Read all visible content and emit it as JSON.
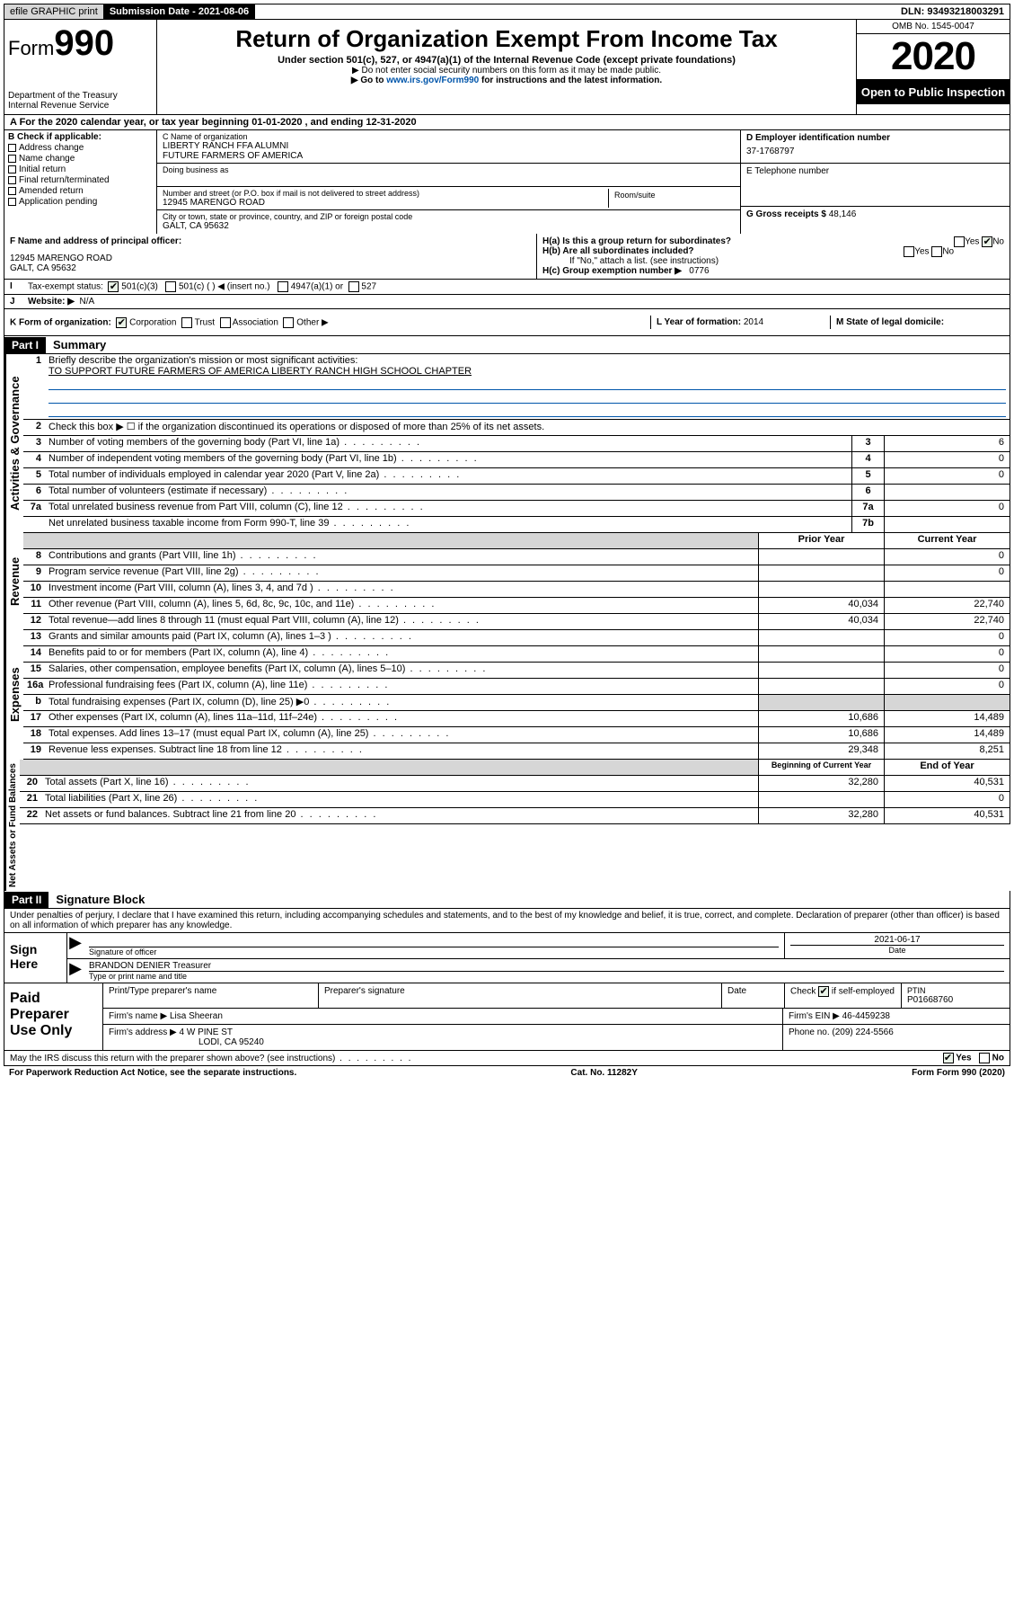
{
  "top": {
    "efile": "efile GRAPHIC print",
    "subdate_label": "Submission Date - 2021-08-06",
    "dln": "DLN: 93493218003291"
  },
  "header": {
    "form_word": "Form",
    "form_num": "990",
    "dept1": "Department of the Treasury",
    "dept2": "Internal Revenue Service",
    "title": "Return of Organization Exempt From Income Tax",
    "sub1": "Under section 501(c), 527, or 4947(a)(1) of the Internal Revenue Code (except private foundations)",
    "sub2": "▶ Do not enter social security numbers on this form as it may be made public.",
    "sub3_pre": "▶ Go to ",
    "sub3_link": "www.irs.gov/Form990",
    "sub3_post": " for instructions and the latest information.",
    "omb": "OMB No. 1545-0047",
    "year": "2020",
    "open": "Open to Public Inspection"
  },
  "a_row": "A For the 2020 calendar year, or tax year beginning 01-01-2020     , and ending 12-31-2020",
  "b": {
    "label": "B Check if applicable:",
    "opts": [
      "Address change",
      "Name change",
      "Initial return",
      "Final return/terminated",
      "Amended return",
      "Application pending"
    ]
  },
  "c": {
    "name_lbl": "C Name of organization",
    "name1": "LIBERTY RANCH FFA ALUMNI",
    "name2": "FUTURE FARMERS OF AMERICA",
    "dba_lbl": "Doing business as",
    "addr_lbl": "Number and street (or P.O. box if mail is not delivered to street address)",
    "room_lbl": "Room/suite",
    "addr": "12945 MARENGO ROAD",
    "city_lbl": "City or town, state or province, country, and ZIP or foreign postal code",
    "city": "GALT, CA  95632"
  },
  "d": {
    "lbl": "D Employer identification number",
    "val": "37-1768797"
  },
  "e": {
    "lbl": "E Telephone number"
  },
  "g": {
    "lbl": "G Gross receipts $",
    "val": "48,146"
  },
  "f": {
    "lbl": "F  Name and address of principal officer:",
    "addr1": "12945 MARENGO ROAD",
    "addr2": "GALT, CA  95632"
  },
  "h": {
    "a_lbl": "H(a)  Is this a group return for subordinates?",
    "b_lbl": "H(b)  Are all subordinates included?",
    "note": "If \"No,\" attach a list. (see instructions)",
    "c_lbl": "H(c)  Group exemption number ▶",
    "c_val": "0776"
  },
  "i": {
    "lbl": "Tax-exempt status:",
    "opt1": "501(c)(3)",
    "opt2": "501(c) (  ) ◀ (insert no.)",
    "opt3": "4947(a)(1) or",
    "opt4": "527"
  },
  "j": {
    "lbl": "Website: ▶",
    "val": "N/A"
  },
  "k": {
    "lbl": "K Form of organization:",
    "opts": [
      "Corporation",
      "Trust",
      "Association",
      "Other ▶"
    ]
  },
  "l": {
    "lbl": "L Year of formation:",
    "val": "2014"
  },
  "m": {
    "lbl": "M State of legal domicile:"
  },
  "part1": {
    "header": "Part I",
    "title": "Summary",
    "q1": "Briefly describe the organization's mission or most significant activities:",
    "q1_ans": "TO SUPPORT FUTURE FARMERS OF AMERICA LIBERTY RANCH HIGH SCHOOL CHAPTER",
    "q2": "Check this box ▶ ☐  if the organization discontinued its operations or disposed of more than 25% of its net assets.",
    "rows_gov": [
      {
        "n": "3",
        "t": "Number of voting members of the governing body (Part VI, line 1a)",
        "box": "3",
        "v": "6"
      },
      {
        "n": "4",
        "t": "Number of independent voting members of the governing body (Part VI, line 1b)",
        "box": "4",
        "v": "0"
      },
      {
        "n": "5",
        "t": "Total number of individuals employed in calendar year 2020 (Part V, line 2a)",
        "box": "5",
        "v": "0"
      },
      {
        "n": "6",
        "t": "Total number of volunteers (estimate if necessary)",
        "box": "6",
        "v": ""
      },
      {
        "n": "7a",
        "t": "Total unrelated business revenue from Part VIII, column (C), line 12",
        "box": "7a",
        "v": "0"
      },
      {
        "n": "",
        "t": "Net unrelated business taxable income from Form 990-T, line 39",
        "box": "7b",
        "v": ""
      }
    ],
    "col_prior": "Prior Year",
    "col_current": "Current Year",
    "rev": [
      {
        "n": "8",
        "t": "Contributions and grants (Part VIII, line 1h)",
        "p": "",
        "c": "0"
      },
      {
        "n": "9",
        "t": "Program service revenue (Part VIII, line 2g)",
        "p": "",
        "c": "0"
      },
      {
        "n": "10",
        "t": "Investment income (Part VIII, column (A), lines 3, 4, and 7d )",
        "p": "",
        "c": ""
      },
      {
        "n": "11",
        "t": "Other revenue (Part VIII, column (A), lines 5, 6d, 8c, 9c, 10c, and 11e)",
        "p": "40,034",
        "c": "22,740"
      },
      {
        "n": "12",
        "t": "Total revenue—add lines 8 through 11 (must equal Part VIII, column (A), line 12)",
        "p": "40,034",
        "c": "22,740"
      }
    ],
    "exp": [
      {
        "n": "13",
        "t": "Grants and similar amounts paid (Part IX, column (A), lines 1–3 )",
        "p": "",
        "c": "0"
      },
      {
        "n": "14",
        "t": "Benefits paid to or for members (Part IX, column (A), line 4)",
        "p": "",
        "c": "0"
      },
      {
        "n": "15",
        "t": "Salaries, other compensation, employee benefits (Part IX, column (A), lines 5–10)",
        "p": "",
        "c": "0"
      },
      {
        "n": "16a",
        "t": "Professional fundraising fees (Part IX, column (A), line 11e)",
        "p": "",
        "c": "0"
      },
      {
        "n": "b",
        "t": "Total fundraising expenses (Part IX, column (D), line 25) ▶0",
        "p": "SHADE",
        "c": "SHADE"
      },
      {
        "n": "17",
        "t": "Other expenses (Part IX, column (A), lines 11a–11d, 11f–24e)",
        "p": "10,686",
        "c": "14,489"
      },
      {
        "n": "18",
        "t": "Total expenses. Add lines 13–17 (must equal Part IX, column (A), line 25)",
        "p": "10,686",
        "c": "14,489"
      },
      {
        "n": "19",
        "t": "Revenue less expenses. Subtract line 18 from line 12",
        "p": "29,348",
        "c": "8,251"
      }
    ],
    "col_beg": "Beginning of Current Year",
    "col_end": "End of Year",
    "net": [
      {
        "n": "20",
        "t": "Total assets (Part X, line 16)",
        "p": "32,280",
        "c": "40,531"
      },
      {
        "n": "21",
        "t": "Total liabilities (Part X, line 26)",
        "p": "",
        "c": "0"
      },
      {
        "n": "22",
        "t": "Net assets or fund balances. Subtract line 21 from line 20",
        "p": "32,280",
        "c": "40,531"
      }
    ],
    "vlabels": {
      "gov": "Activities & Governance",
      "rev": "Revenue",
      "exp": "Expenses",
      "net": "Net Assets or Fund Balances"
    }
  },
  "part2": {
    "header": "Part II",
    "title": "Signature Block",
    "decl": "Under penalties of perjury, I declare that I have examined this return, including accompanying schedules and statements, and to the best of my knowledge and belief, it is true, correct, and complete. Declaration of preparer (other than officer) is based on all information of which preparer has any knowledge."
  },
  "sign": {
    "lbl": "Sign Here",
    "sig_lbl": "Signature of officer",
    "date": "2021-06-17",
    "date_lbl": "Date",
    "name": "BRANDON DENIER Treasurer",
    "name_lbl": "Type or print name and title"
  },
  "prep": {
    "lbl": "Paid Preparer Use Only",
    "h1": "Print/Type preparer's name",
    "h2": "Preparer's signature",
    "h3": "Date",
    "h4_pre": "Check",
    "h4_post": "if self-employed",
    "h5": "PTIN",
    "ptin": "P01668760",
    "firm_lbl": "Firm's name      ▶",
    "firm": "Lisa Sheeran",
    "ein_lbl": "Firm's EIN ▶",
    "ein": "46-4459238",
    "addr_lbl": "Firm's address ▶",
    "addr1": "4 W PINE ST",
    "addr2": "LODI, CA  95240",
    "phone_lbl": "Phone no.",
    "phone": "(209) 224-5566"
  },
  "footer": {
    "q": "May the IRS discuss this return with the preparer shown above? (see instructions)",
    "yes": "Yes",
    "no": "No",
    "paperwork": "For Paperwork Reduction Act Notice, see the separate instructions.",
    "cat": "Cat. No. 11282Y",
    "form": "Form 990 (2020)"
  }
}
